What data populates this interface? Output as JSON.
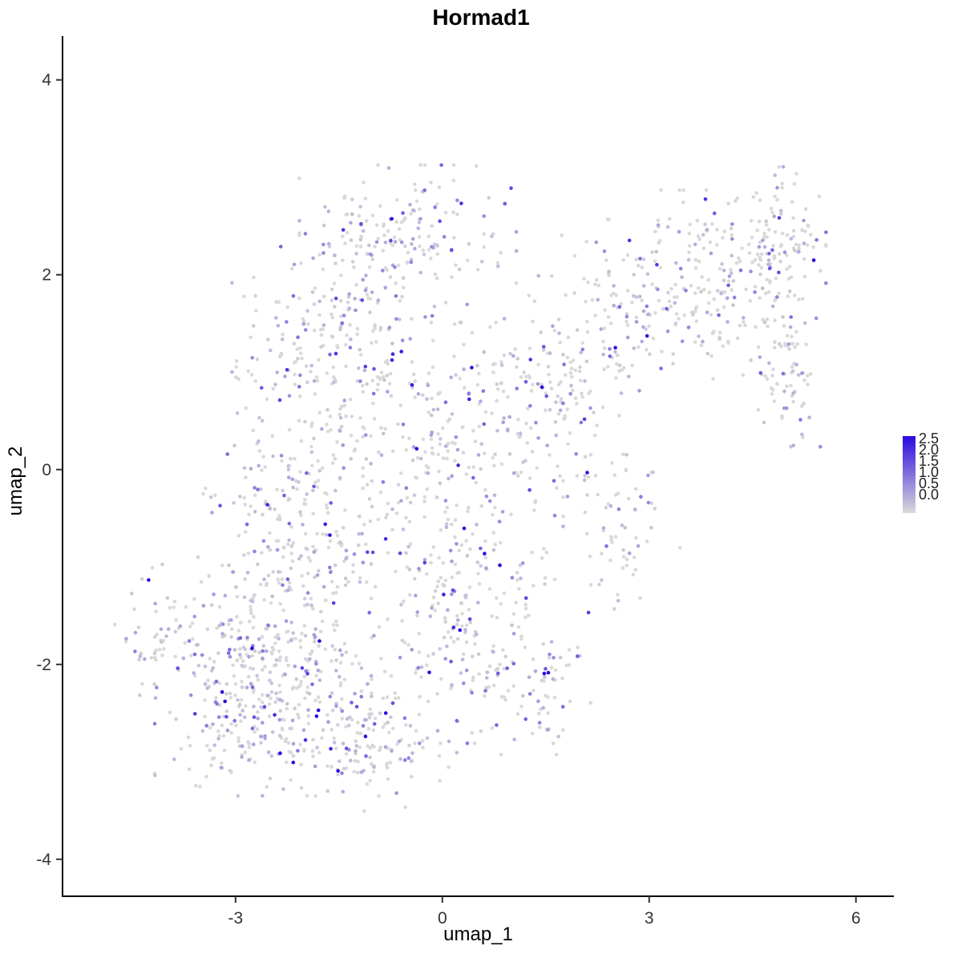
{
  "title": "Hormad1",
  "axes": {
    "x": {
      "label": "umap_1",
      "ticks": [
        -3,
        0,
        3,
        6
      ]
    },
    "y": {
      "label": "umap_2",
      "ticks": [
        -4,
        -2,
        0,
        2,
        4
      ]
    }
  },
  "legend": {
    "labels": [
      "2.5",
      "2.0",
      "1.5",
      "1.0",
      "0.5",
      "0.0"
    ],
    "low_color": "#D9D9D9",
    "high_color": "#2A0BE0"
  },
  "chart_data": {
    "type": "scatter",
    "title": "Hormad1",
    "xlabel": "umap_1",
    "ylabel": "umap_2",
    "xlim": [
      -5.51,
      6.55
    ],
    "ylim": [
      -4.38,
      4.45
    ],
    "x_ticks": [
      -3,
      0,
      3,
      6
    ],
    "y_ticks": [
      -4,
      -2,
      0,
      2,
      4
    ],
    "grid": false,
    "legend_position": "right",
    "color_scale": {
      "low": "#D9D9D9",
      "high": "#2A0BE0",
      "domain": [
        0,
        2.5
      ]
    },
    "point_radius": 2.3,
    "seed": 42,
    "clusters": [
      {
        "cx": -2.6,
        "cy": -2.2,
        "rx": 1.3,
        "ry": 0.95,
        "n": 420,
        "g": 0.45
      },
      {
        "cx": -2.0,
        "cy": -0.6,
        "rx": 1.3,
        "ry": 1.0,
        "n": 260,
        "g": 0.5
      },
      {
        "cx": -1.6,
        "cy": 1.2,
        "rx": 1.2,
        "ry": 0.9,
        "n": 230,
        "g": 0.5
      },
      {
        "cx": -0.5,
        "cy": 2.4,
        "rx": 1.3,
        "ry": 0.6,
        "n": 180,
        "g": 0.5
      },
      {
        "cx": 0.3,
        "cy": 0.3,
        "rx": 1.2,
        "ry": 1.0,
        "n": 200,
        "g": 0.55
      },
      {
        "cx": 0.3,
        "cy": -1.6,
        "rx": 1.1,
        "ry": 1.0,
        "n": 230,
        "g": 0.5
      },
      {
        "cx": -1.0,
        "cy": -2.9,
        "rx": 1.0,
        "ry": 0.5,
        "n": 120,
        "g": 0.5
      },
      {
        "cx": 1.6,
        "cy": 0.9,
        "rx": 0.9,
        "ry": 0.9,
        "n": 120,
        "g": 0.55
      },
      {
        "cx": 2.7,
        "cy": 1.6,
        "rx": 0.8,
        "ry": 0.8,
        "n": 110,
        "g": 0.55
      },
      {
        "cx": 3.9,
        "cy": 1.9,
        "rx": 1.0,
        "ry": 0.8,
        "n": 170,
        "g": 0.55
      },
      {
        "cx": 4.9,
        "cy": 2.2,
        "rx": 0.55,
        "ry": 0.75,
        "n": 120,
        "g": 0.75
      },
      {
        "cx": 5.0,
        "cy": 0.9,
        "rx": 0.4,
        "ry": 0.55,
        "n": 60,
        "g": 0.6
      },
      {
        "cx": 2.6,
        "cy": -0.5,
        "rx": 0.7,
        "ry": 0.8,
        "n": 70,
        "g": 0.55
      },
      {
        "cx": 1.5,
        "cy": -2.2,
        "rx": 0.6,
        "ry": 0.6,
        "n": 60,
        "g": 0.5
      },
      {
        "cx": -4.2,
        "cy": -1.7,
        "rx": 0.5,
        "ry": 0.6,
        "n": 50,
        "g": 0.5
      }
    ]
  }
}
